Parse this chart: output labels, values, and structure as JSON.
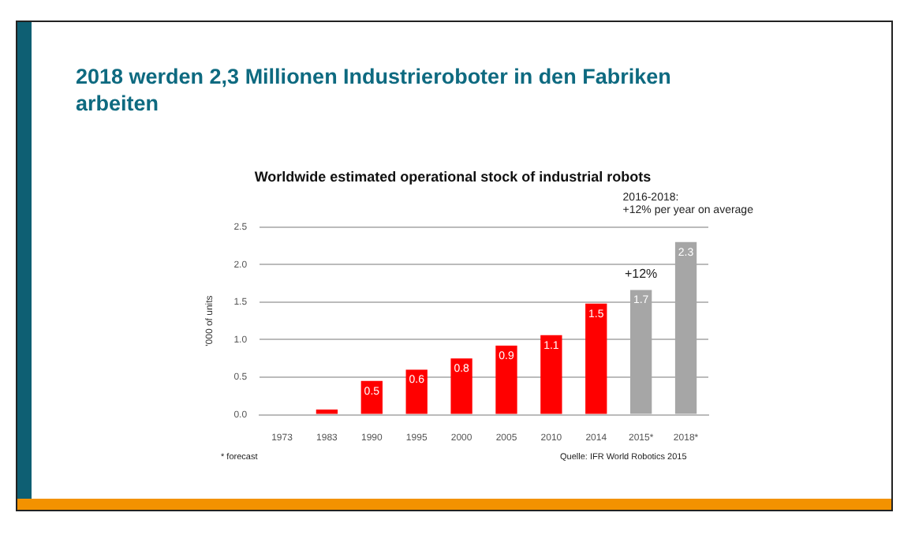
{
  "chart_data": {
    "type": "bar",
    "title": "2018 werden 2,3 Millionen Industrieroboter in den Fabriken arbeiten",
    "subtitle": "Worldwide estimated operational stock of industrial robots",
    "ylabel": "'000 of units",
    "categories": [
      "1973",
      "1983",
      "1990",
      "1995",
      "2000",
      "2005",
      "2010",
      "2014",
      "2015*",
      "2018*"
    ],
    "values": [
      0,
      0.07,
      0.45,
      0.6,
      0.75,
      0.92,
      1.06,
      1.48,
      1.66,
      2.3
    ],
    "value_labels": [
      null,
      null,
      "0.5",
      "0.6",
      "0.8",
      "0.9",
      "1.1",
      "1.5",
      "1.7",
      "2.3"
    ],
    "colors": [
      "#ff0000",
      "#ff0000",
      "#ff0000",
      "#ff0000",
      "#ff0000",
      "#ff0000",
      "#ff0000",
      "#ff0000",
      "#a6a6a6",
      "#a6a6a6"
    ],
    "ylim": [
      0,
      2.5
    ],
    "yticks": [
      {
        "value": 0,
        "label": "0.0"
      },
      {
        "value": 0.5,
        "label": "0.5"
      },
      {
        "value": 1,
        "label": "1.0"
      },
      {
        "value": 1.5,
        "label": "1.5"
      },
      {
        "value": 2,
        "label": "2.0"
      },
      {
        "value": 2.5,
        "label": "2.5"
      }
    ],
    "grid": "y",
    "legend": false,
    "annotations": [
      "+12%",
      "2016-2018:\n+12% per year on average",
      "* forecast",
      "Quelle: IFR World Robotics 2015"
    ]
  }
}
